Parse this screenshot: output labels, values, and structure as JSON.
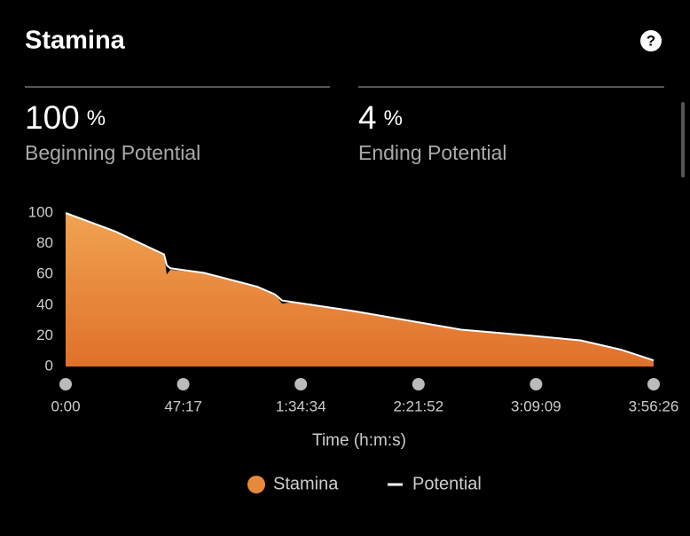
{
  "header": {
    "title": "Stamina",
    "help_icon": "?"
  },
  "stats": [
    {
      "value": "100",
      "unit": "%",
      "label": "Beginning Potential"
    },
    {
      "value": "4",
      "unit": "%",
      "label": "Ending Potential"
    }
  ],
  "chart_data": {
    "type": "area",
    "x": [
      0,
      1198,
      2375,
      2439,
      2525,
      3338,
      4622,
      5050,
      5221,
      5478,
      6975,
      8473,
      9543,
      11254,
      12431,
      13394,
      14186
    ],
    "series": [
      {
        "name": "Stamina",
        "color": "#e8893a",
        "values": [
          100,
          88,
          73,
          60,
          63,
          61,
          52,
          47,
          41,
          42,
          36,
          29,
          24,
          20,
          17,
          11,
          4
        ]
      },
      {
        "name": "Potential",
        "color": "#ffffff",
        "values": [
          100,
          88,
          73,
          66,
          64,
          61,
          52,
          47,
          43,
          42,
          36,
          29,
          24,
          20,
          17,
          11,
          4
        ]
      }
    ],
    "xlabel": "Time (h:m:s)",
    "xlim": [
      0,
      14186
    ],
    "xticks": [
      {
        "value": 0,
        "label": "0:00"
      },
      {
        "value": 2837,
        "label": "47:17"
      },
      {
        "value": 5674,
        "label": "1:34:34"
      },
      {
        "value": 8512,
        "label": "2:21:52"
      },
      {
        "value": 11349,
        "label": "3:09:09"
      },
      {
        "value": 14186,
        "label": "3:56:26"
      }
    ],
    "ylim": [
      0,
      100
    ],
    "yticks": [
      0,
      20,
      40,
      60,
      80,
      100
    ],
    "grid": false
  }
}
